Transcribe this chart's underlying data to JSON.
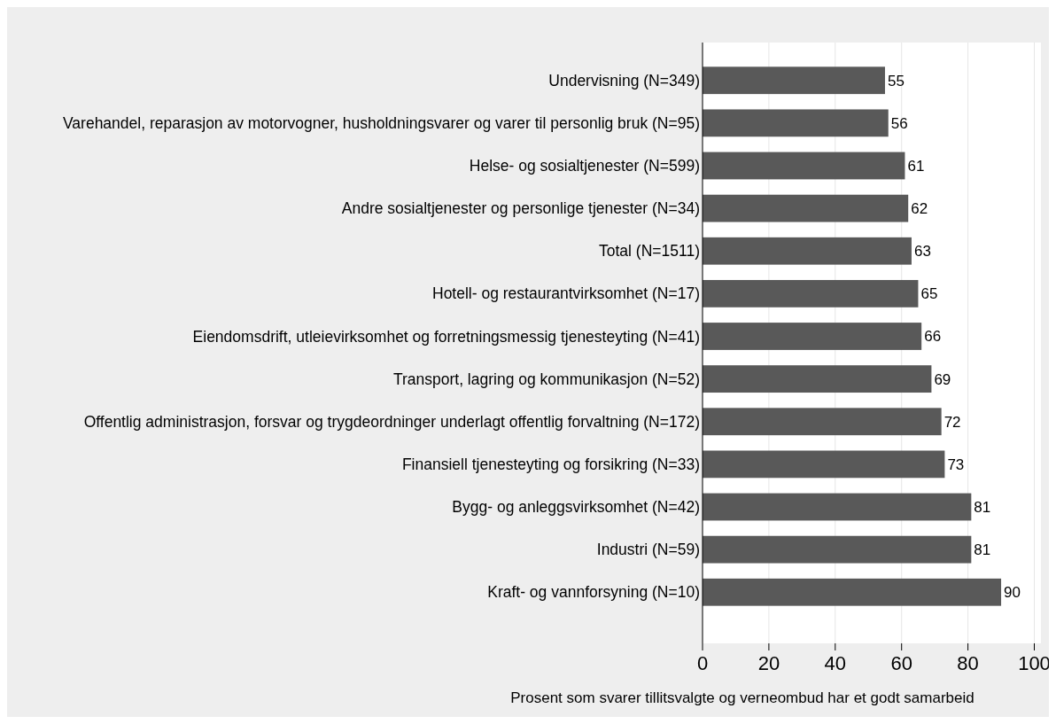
{
  "chart_data": {
    "type": "bar",
    "orientation": "horizontal",
    "xlabel": "Prosent som svarer tillitsvalgte og verneombud har et godt samarbeid",
    "categories": [
      "Undervisning (N=349)",
      "Varehandel, reparasjon av motorvogner, husholdningsvarer og varer til personlig bruk (N=95)",
      "Helse- og sosialtjenester (N=599)",
      "Andre sosialtjenester og personlige tjenester (N=34)",
      "Total (N=1511)",
      "Hotell- og restaurantvirksomhet (N=17)",
      "Eiendomsdrift, utleievirksomhet og forretningsmessig tjenesteyting (N=41)",
      "Transport, lagring og kommunikasjon (N=52)",
      "Offentlig administrasjon, forsvar og trygdeordninger underlagt offentlig forvaltning (N=172)",
      "Finansiell tjenesteyting og forsikring (N=33)",
      "Bygg- og anleggsvirksomhet (N=42)",
      "Industri (N=59)",
      "Kraft- og vannforsyning (N=10)"
    ],
    "values": [
      55,
      56,
      61,
      62,
      63,
      65,
      66,
      69,
      72,
      73,
      81,
      81,
      90
    ],
    "color": "#595959",
    "xlim": [
      0,
      102
    ],
    "xticks": [
      0,
      20,
      40,
      60,
      80,
      100
    ],
    "grid": "x",
    "data_labels": true
  }
}
